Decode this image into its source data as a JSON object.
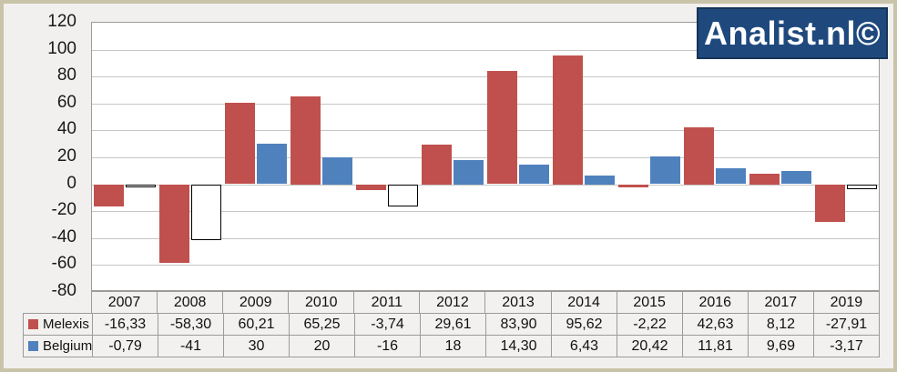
{
  "watermark": {
    "text": "Analist.nl©",
    "bg": "#1f497d",
    "fg": "#ffffff"
  },
  "y_axis": {
    "ticks": [
      120,
      100,
      80,
      60,
      40,
      20,
      0,
      -20,
      -40,
      -60,
      -80
    ]
  },
  "chart_data": {
    "type": "bar",
    "title": "",
    "xlabel": "",
    "ylabel": "",
    "categories": [
      "2007",
      "2008",
      "2009",
      "2010",
      "2011",
      "2012",
      "2013",
      "2014",
      "2015",
      "2016",
      "2017",
      "2019"
    ],
    "series": [
      {
        "name": "Melexis",
        "color": "#c0504d",
        "values": [
          -16.33,
          -58.3,
          60.21,
          65.25,
          -3.74,
          29.61,
          83.9,
          95.62,
          -2.22,
          42.63,
          8.12,
          -27.91
        ],
        "labels": [
          "-16,33",
          "-58,30",
          "60,21",
          "65,25",
          "-3,74",
          "29,61",
          "83,90",
          "95,62",
          "-2,22",
          "42,63",
          "8,12",
          "-27,91"
        ]
      },
      {
        "name": "Belgium",
        "color": "#4f81bd",
        "values": [
          -0.79,
          -41,
          30,
          20,
          -16,
          18,
          14.3,
          6.43,
          20.42,
          11.81,
          9.69,
          -3.17
        ],
        "labels": [
          "-0,79",
          "-41",
          "30",
          "20",
          "-16",
          "18",
          "14,30",
          "6,43",
          "20,42",
          "11,81",
          "9,69",
          "-3,17"
        ],
        "negative_fill": "#ffffff",
        "negative_border": "#000000"
      }
    ],
    "ylim": [
      -80,
      120
    ],
    "ytick_step": 20,
    "grid": true,
    "legend_position": "table-left",
    "table_legend": true
  },
  "colors": {
    "background": "#f1f0ee",
    "frame_border": "#c9c3a9",
    "plot_background": "#ffffff",
    "gridline": "#c6c6c6",
    "table_border": "#9b9b9b",
    "melexis": "#c0504d",
    "belgium": "#4f81bd",
    "logo_background": "#1f497d",
    "logo_text": "#ffffff"
  }
}
